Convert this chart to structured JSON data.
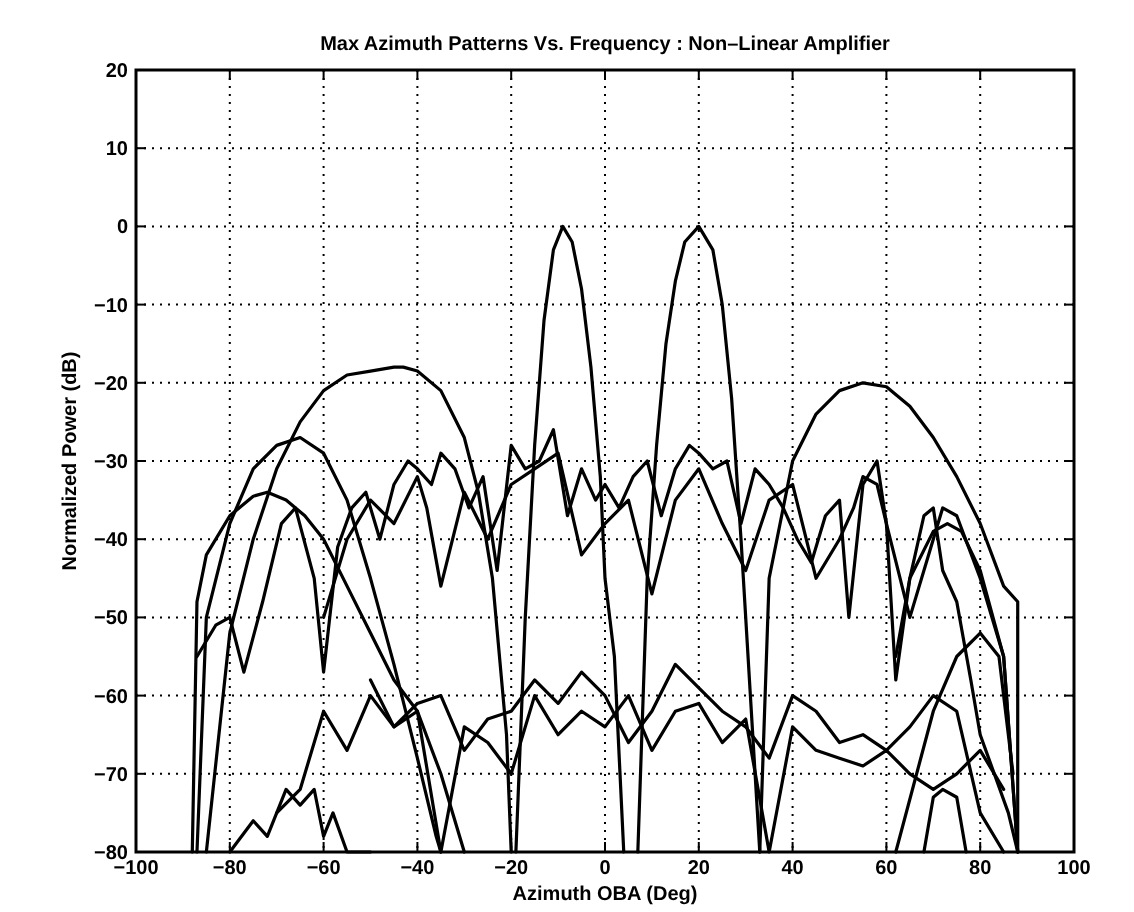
{
  "chart_data": {
    "type": "line",
    "title": "Max Azimuth Patterns Vs. Frequency : Non–Linear Amplifier",
    "xlabel": "Azimuth OBA (Deg)",
    "ylabel": "Normalized Power (dB)",
    "xlim": [
      -100,
      100
    ],
    "ylim": [
      -80,
      20
    ],
    "xticks": [
      -100,
      -80,
      -60,
      -40,
      -20,
      0,
      20,
      40,
      60,
      80,
      100
    ],
    "yticks": [
      -80,
      -70,
      -60,
      -50,
      -40,
      -30,
      -20,
      -10,
      0,
      10,
      20
    ],
    "grid": true,
    "marker": "none",
    "line_style": "solid",
    "series": [
      {
        "color": "#000000",
        "x": [
          -19,
          -17,
          -15,
          -13,
          -11,
          -9,
          -7,
          -5,
          -3,
          -1,
          0,
          2,
          4
        ],
        "values": [
          -80,
          -50,
          -28,
          -12,
          -3,
          0,
          -2,
          -8,
          -18,
          -32,
          -45,
          -55,
          -80
        ]
      },
      {
        "color": "#000000",
        "x": [
          7,
          9,
          11,
          13,
          15,
          17,
          20,
          23,
          25,
          27,
          29,
          31,
          33
        ],
        "values": [
          -80,
          -45,
          -28,
          -15,
          -7,
          -2,
          0,
          -3,
          -10,
          -22,
          -40,
          -60,
          -80
        ]
      },
      {
        "color": "#000000",
        "x": [
          -85,
          -80,
          -75,
          -70,
          -65,
          -60,
          -55,
          -50,
          -45,
          -43,
          -40,
          -35,
          -30,
          -27,
          -24,
          -21,
          -20
        ],
        "values": [
          -80,
          -52,
          -40,
          -31,
          -25,
          -21,
          -19,
          -18.5,
          -18,
          -18,
          -18.5,
          -21,
          -27,
          -34,
          -45,
          -65,
          -80
        ]
      },
      {
        "color": "#000000",
        "x": [
          33,
          35,
          40,
          45,
          50,
          55,
          60,
          65,
          70,
          75,
          80,
          85,
          88,
          88
        ],
        "values": [
          -80,
          -45,
          -30,
          -24,
          -21,
          -20,
          -20.5,
          -23,
          -27,
          -32,
          -38,
          -46,
          -48,
          -80
        ]
      },
      {
        "color": "#000000",
        "x": [
          -87,
          -85,
          -80,
          -75,
          -70,
          -65,
          -60,
          -55,
          -50,
          -45,
          -40,
          -36,
          -35
        ],
        "values": [
          -80,
          -50,
          -38,
          -31,
          -28,
          -27,
          -29,
          -35,
          -45,
          -56,
          -68,
          -78,
          -80
        ]
      },
      {
        "color": "#000000",
        "x": [
          -88,
          -87,
          -85,
          -80,
          -75,
          -72,
          -68,
          -64,
          -60,
          -55,
          -50,
          -45,
          -40,
          -35,
          -30
        ],
        "values": [
          -80,
          -48,
          -42,
          -37,
          -34.5,
          -34,
          -35,
          -37,
          -40,
          -46,
          -52,
          -58,
          -62,
          -70,
          -80
        ]
      },
      {
        "color": "#000000",
        "x": [
          -87,
          -83,
          -80,
          -77,
          -73,
          -69,
          -66,
          -62,
          -60,
          -57,
          -54,
          -51,
          -48,
          -45,
          -42,
          -40,
          -37,
          -35,
          -32,
          -29,
          -26,
          -23,
          -20,
          -17,
          -14,
          -11,
          -8,
          -5,
          -2,
          0,
          3,
          6,
          9,
          12,
          15,
          18,
          20,
          23,
          26,
          29,
          32,
          35,
          38,
          41,
          44,
          47,
          50,
          52,
          55,
          58,
          60,
          62,
          65,
          68,
          70,
          72,
          75,
          78,
          80,
          83,
          86,
          88
        ],
        "values": [
          -55,
          -51,
          -50,
          -57,
          -48,
          -38,
          -36,
          -45,
          -57,
          -41,
          -36,
          -34,
          -40,
          -33,
          -30,
          -31,
          -33,
          -29,
          -31,
          -36,
          -32,
          -44,
          -28,
          -31,
          -30,
          -26,
          -37,
          -31,
          -35,
          -33,
          -36,
          -32,
          -30,
          -37,
          -31,
          -28,
          -29,
          -31,
          -30,
          -38,
          -31,
          -33,
          -36,
          -40,
          -43,
          -37,
          -35,
          -50,
          -33,
          -30,
          -38,
          -58,
          -45,
          -37,
          -36,
          -44,
          -48,
          -58,
          -65,
          -70,
          -75,
          -80
        ]
      },
      {
        "color": "#000000",
        "x": [
          -60,
          -55,
          -50,
          -45,
          -40,
          -38,
          -35,
          -30,
          -25,
          -20,
          -15,
          -10,
          -5,
          0,
          5,
          10,
          15,
          20,
          25,
          30,
          35,
          40,
          45,
          50,
          53,
          55,
          58,
          60,
          65,
          70,
          72,
          75,
          80,
          85,
          88
        ],
        "values": [
          -50,
          -40,
          -35,
          -38,
          -32,
          -36,
          -46,
          -34,
          -40,
          -33,
          -31,
          -29,
          -42,
          -38,
          -35,
          -47,
          -35,
          -31,
          -38,
          -44,
          -35,
          -33,
          -45,
          -40,
          -36,
          -32,
          -33,
          -38,
          -50,
          -40,
          -36,
          -37,
          -45,
          -55,
          -80
        ]
      },
      {
        "color": "#000000",
        "x": [
          -50,
          -45,
          -40,
          -35,
          -30,
          -25,
          -20,
          -15,
          -10,
          -5,
          0,
          5,
          10,
          15,
          20,
          25,
          30,
          35,
          40,
          45,
          50,
          55,
          60,
          65,
          70,
          75,
          80,
          85
        ],
        "values": [
          -58,
          -64,
          -61,
          -60,
          -67,
          -63,
          -62,
          -58,
          -61,
          -57,
          -60,
          -66,
          -62,
          -56,
          -59,
          -62,
          -64,
          -68,
          -60,
          -62,
          -66,
          -65,
          -67,
          -64,
          -60,
          -62,
          -75,
          -80
        ]
      },
      {
        "color": "#000000",
        "x": [
          -70,
          -65,
          -60,
          -55,
          -50,
          -45,
          -40,
          -35,
          -30,
          -25,
          -20,
          -15,
          -10,
          -5,
          0,
          5,
          10,
          15,
          20,
          25,
          30,
          35,
          40,
          45,
          50,
          55,
          60,
          65,
          70,
          75,
          80,
          85
        ],
        "values": [
          -75,
          -72,
          -62,
          -67,
          -60,
          -64,
          -62,
          -80,
          -64,
          -66,
          -70,
          -60,
          -65,
          -62,
          -64,
          -60,
          -67,
          -62,
          -61,
          -66,
          -63,
          -80,
          -64,
          -67,
          -68,
          -69,
          -67,
          -70,
          -72,
          -70,
          -67,
          -72
        ]
      },
      {
        "color": "#000000",
        "x": [
          -80,
          -75,
          -72,
          -68,
          -65,
          -62,
          -60,
          -58,
          -55,
          -50
        ],
        "values": [
          -80,
          -76,
          -78,
          -72,
          -74,
          -72,
          -78,
          -75,
          -80,
          -80
        ]
      },
      {
        "color": "#000000",
        "x": [
          68,
          70,
          72,
          75,
          77
        ],
        "values": [
          -80,
          -73,
          -72,
          -73,
          -80
        ]
      },
      {
        "color": "#000000",
        "x": [
          62,
          65,
          70,
          73,
          76,
          80,
          85,
          88
        ],
        "values": [
          -55,
          -45,
          -39,
          -38,
          -39,
          -44,
          -55,
          -80
        ]
      },
      {
        "color": "#000000",
        "x": [
          62,
          70,
          75,
          80,
          84,
          87
        ],
        "values": [
          -80,
          -62,
          -55,
          -52,
          -55,
          -70
        ]
      }
    ]
  }
}
